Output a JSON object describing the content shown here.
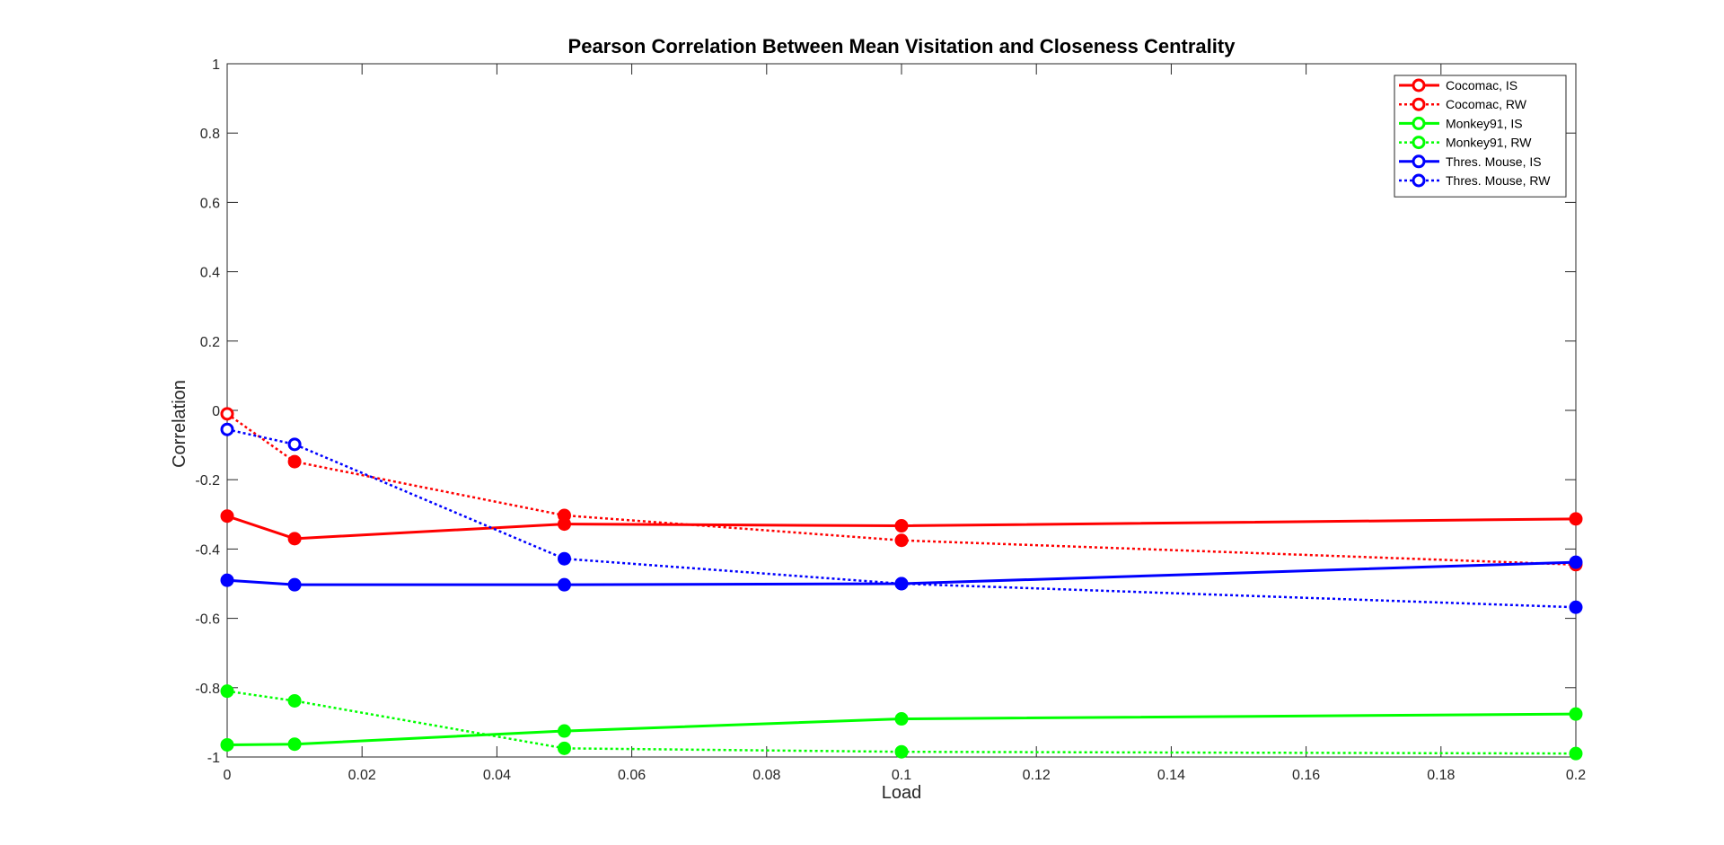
{
  "chart_data": {
    "type": "line",
    "title": "Pearson Correlation Between Mean Visitation and Closeness Centrality",
    "xlabel": "Load",
    "ylabel": "Correlation",
    "xlim": [
      0,
      0.2
    ],
    "ylim": [
      -1,
      1
    ],
    "x_ticks": [
      0,
      0.02,
      0.04,
      0.06,
      0.08,
      0.1,
      0.12,
      0.14,
      0.16,
      0.18,
      0.2
    ],
    "x_tick_labels": [
      "0",
      "0.02",
      "0.04",
      "0.06",
      "0.08",
      "0.1",
      "0.12",
      "0.14",
      "0.16",
      "0.18",
      "0.2"
    ],
    "y_ticks": [
      -1,
      -0.8,
      -0.6,
      -0.4,
      -0.2,
      0,
      0.2,
      0.4,
      0.6,
      0.8,
      1
    ],
    "y_tick_labels": [
      "-1",
      "-0.8",
      "-0.6",
      "-0.4",
      "-0.2",
      "0",
      "0.2",
      "0.4",
      "0.6",
      "0.8",
      "1"
    ],
    "grid": false,
    "legend_position": "top-right",
    "x": [
      0,
      0.01,
      0.05,
      0.1,
      0.2
    ],
    "series": [
      {
        "name": "Cocomac, IS",
        "color": "#ff0000",
        "style": "solid",
        "values": [
          -0.305,
          -0.37,
          -0.328,
          -0.333,
          -0.313
        ],
        "marker_fill": [
          true,
          true,
          true,
          true,
          true
        ]
      },
      {
        "name": "Cocomac, RW",
        "color": "#ff0000",
        "style": "dotted",
        "values": [
          -0.01,
          -0.148,
          -0.303,
          -0.375,
          -0.445
        ],
        "marker_fill": [
          false,
          true,
          true,
          true,
          true
        ]
      },
      {
        "name": "Monkey91, IS",
        "color": "#00ff00",
        "style": "solid",
        "values": [
          -0.965,
          -0.963,
          -0.925,
          -0.89,
          -0.876
        ],
        "marker_fill": [
          true,
          true,
          true,
          true,
          true
        ]
      },
      {
        "name": "Monkey91, RW",
        "color": "#00ff00",
        "style": "dotted",
        "values": [
          -0.81,
          -0.838,
          -0.975,
          -0.985,
          -0.99
        ],
        "marker_fill": [
          true,
          true,
          true,
          true,
          true
        ]
      },
      {
        "name": "Thres. Mouse, IS",
        "color": "#0000ff",
        "style": "solid",
        "values": [
          -0.49,
          -0.503,
          -0.503,
          -0.5,
          -0.438
        ],
        "marker_fill": [
          true,
          true,
          true,
          true,
          true
        ]
      },
      {
        "name": "Thres. Mouse, RW",
        "color": "#0000ff",
        "style": "dotted",
        "values": [
          -0.055,
          -0.098,
          -0.428,
          -0.5,
          -0.568
        ],
        "marker_fill": [
          false,
          false,
          true,
          true,
          true
        ]
      }
    ]
  }
}
